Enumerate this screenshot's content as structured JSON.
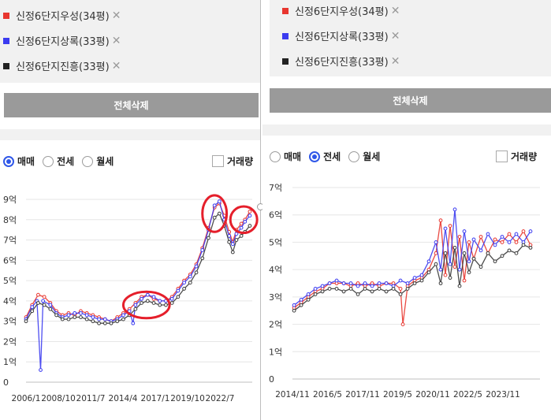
{
  "colors": {
    "series_red": "#e8362f",
    "series_blue": "#3b3bf0",
    "series_black": "#3a3a3a",
    "highlight_circle": "#e51f2b",
    "radio_active": "#2f57e8",
    "button_gray": "#9a9a9a"
  },
  "left": {
    "tags": [
      {
        "label": "신정6단지우성(34평)",
        "color": "#e8362f"
      },
      {
        "label": "신정6단지상록(33평)",
        "color": "#3b3bf0"
      },
      {
        "label": "신정6단지진흥(33평)",
        "color": "#222222"
      }
    ],
    "delete_all": "전체삭제",
    "tabs": {
      "sale": "매매",
      "jeonse": "전세",
      "monthly": "월세",
      "selected": "sale"
    },
    "volume": "거래량"
  },
  "right": {
    "tags": [
      {
        "label": "신정6단지우성(34평)",
        "color": "#e8362f"
      },
      {
        "label": "신정6단지상록(33평)",
        "color": "#3b3bf0"
      },
      {
        "label": "신정6단지진흥(33평)",
        "color": "#222222"
      }
    ],
    "delete_all": "전체삭제",
    "tabs": {
      "sale": "매매",
      "jeonse": "전세",
      "monthly": "월세",
      "selected": "jeonse"
    },
    "volume": "거래량"
  },
  "icons": {
    "remove": "close-x-icon",
    "check": "checkbox-icon"
  },
  "chart_data": [
    {
      "type": "line",
      "panel": "sale",
      "y_ticks": [
        "0",
        "1억",
        "2억",
        "3억",
        "4억",
        "5억",
        "6억",
        "7억",
        "8억",
        "9억"
      ],
      "x_ticks": [
        "2006/1",
        "2008/10",
        "2011/7",
        "2014/4",
        "2017/1",
        "2019/10",
        "2022/7"
      ],
      "ylim": [
        0,
        9
      ],
      "x_range": [
        2006.0,
        2024.6
      ],
      "grid": "horizontal",
      "series": [
        {
          "color": "#e8362f",
          "points": [
            [
              2006.0,
              3.2
            ],
            [
              2006.5,
              3.8
            ],
            [
              2007.0,
              4.3
            ],
            [
              2007.5,
              4.2
            ],
            [
              2008.0,
              3.9
            ],
            [
              2008.5,
              3.5
            ],
            [
              2009.0,
              3.3
            ],
            [
              2009.5,
              3.4
            ],
            [
              2010.0,
              3.3
            ],
            [
              2010.5,
              3.5
            ],
            [
              2011.0,
              3.4
            ],
            [
              2011.5,
              3.3
            ],
            [
              2012.0,
              3.2
            ],
            [
              2012.5,
              3.1
            ],
            [
              2013.0,
              3.0
            ],
            [
              2013.5,
              3.2
            ],
            [
              2014.0,
              3.4
            ],
            [
              2014.5,
              3.6
            ],
            [
              2015.0,
              3.9
            ],
            [
              2015.5,
              4.2
            ],
            [
              2016.0,
              4.3
            ],
            [
              2016.5,
              4.1
            ],
            [
              2017.0,
              4.0
            ],
            [
              2017.5,
              4.0
            ],
            [
              2018.0,
              4.2
            ],
            [
              2018.5,
              4.6
            ],
            [
              2019.0,
              5.0
            ],
            [
              2019.5,
              5.3
            ],
            [
              2020.0,
              5.8
            ],
            [
              2020.5,
              6.6
            ],
            [
              2021.0,
              7.6
            ],
            [
              2021.5,
              8.6
            ],
            [
              2021.9,
              8.8
            ],
            [
              2022.3,
              8.2
            ],
            [
              2022.7,
              7.4
            ],
            [
              2023.0,
              6.9
            ],
            [
              2023.3,
              7.5
            ],
            [
              2023.7,
              7.8
            ],
            [
              2024.0,
              8.0
            ],
            [
              2024.4,
              8.4
            ]
          ]
        },
        {
          "color": "#3b3bf0",
          "points": [
            [
              2006.0,
              3.1
            ],
            [
              2006.5,
              3.7
            ],
            [
              2006.9,
              4.0
            ],
            [
              2007.2,
              0.6
            ],
            [
              2007.4,
              4.0
            ],
            [
              2008.0,
              3.8
            ],
            [
              2008.5,
              3.4
            ],
            [
              2009.0,
              3.2
            ],
            [
              2009.5,
              3.3
            ],
            [
              2010.0,
              3.4
            ],
            [
              2010.5,
              3.4
            ],
            [
              2011.0,
              3.3
            ],
            [
              2011.5,
              3.2
            ],
            [
              2012.0,
              3.1
            ],
            [
              2012.5,
              3.1
            ],
            [
              2013.0,
              3.0
            ],
            [
              2013.5,
              3.1
            ],
            [
              2014.0,
              3.3
            ],
            [
              2014.5,
              3.5
            ],
            [
              2014.8,
              2.9
            ],
            [
              2015.0,
              3.8
            ],
            [
              2015.5,
              4.1
            ],
            [
              2016.0,
              4.3
            ],
            [
              2016.5,
              4.2
            ],
            [
              2017.0,
              4.0
            ],
            [
              2017.5,
              4.0
            ],
            [
              2018.0,
              4.1
            ],
            [
              2018.5,
              4.5
            ],
            [
              2019.0,
              4.9
            ],
            [
              2019.5,
              5.2
            ],
            [
              2020.0,
              5.7
            ],
            [
              2020.5,
              6.5
            ],
            [
              2021.0,
              7.5
            ],
            [
              2021.5,
              8.7
            ],
            [
              2021.9,
              8.9
            ],
            [
              2022.3,
              8.0
            ],
            [
              2022.7,
              7.2
            ],
            [
              2023.0,
              6.8
            ],
            [
              2023.3,
              7.3
            ],
            [
              2023.7,
              7.6
            ],
            [
              2024.0,
              7.9
            ],
            [
              2024.4,
              8.2
            ]
          ]
        },
        {
          "color": "#3a3a3a",
          "points": [
            [
              2006.0,
              3.0
            ],
            [
              2006.5,
              3.5
            ],
            [
              2007.0,
              3.9
            ],
            [
              2007.5,
              3.8
            ],
            [
              2008.0,
              3.6
            ],
            [
              2008.5,
              3.3
            ],
            [
              2009.0,
              3.1
            ],
            [
              2009.5,
              3.1
            ],
            [
              2010.0,
              3.2
            ],
            [
              2010.5,
              3.2
            ],
            [
              2011.0,
              3.1
            ],
            [
              2011.5,
              3.0
            ],
            [
              2012.0,
              2.9
            ],
            [
              2012.5,
              2.9
            ],
            [
              2013.0,
              2.9
            ],
            [
              2013.5,
              3.0
            ],
            [
              2014.0,
              3.1
            ],
            [
              2014.5,
              3.3
            ],
            [
              2015.0,
              3.6
            ],
            [
              2015.5,
              3.9
            ],
            [
              2016.0,
              4.0
            ],
            [
              2016.5,
              3.9
            ],
            [
              2017.0,
              3.8
            ],
            [
              2017.5,
              3.8
            ],
            [
              2018.0,
              3.9
            ],
            [
              2018.5,
              4.2
            ],
            [
              2019.0,
              4.6
            ],
            [
              2019.5,
              4.9
            ],
            [
              2020.0,
              5.4
            ],
            [
              2020.5,
              6.1
            ],
            [
              2021.0,
              7.1
            ],
            [
              2021.5,
              8.1
            ],
            [
              2021.9,
              8.3
            ],
            [
              2022.3,
              7.7
            ],
            [
              2022.7,
              6.9
            ],
            [
              2023.0,
              6.4
            ],
            [
              2023.3,
              7.0
            ],
            [
              2023.7,
              7.2
            ],
            [
              2024.0,
              7.4
            ],
            [
              2024.4,
              7.7
            ]
          ]
        }
      ],
      "highlights": [
        {
          "x_center": 2015.9,
          "y_center": 3.8,
          "x_radius": 1.9,
          "y_radius": 0.65
        },
        {
          "x_center": 2021.5,
          "y_center": 8.3,
          "x_radius": 1.0,
          "y_radius": 0.9
        },
        {
          "x_center": 2023.9,
          "y_center": 8.0,
          "x_radius": 1.1,
          "y_radius": 0.65
        }
      ]
    },
    {
      "type": "line",
      "panel": "jeonse",
      "y_ticks": [
        "0",
        "1억",
        "2억",
        "3억",
        "4억",
        "5억",
        "6억",
        "7억"
      ],
      "x_ticks": [
        "2014/11",
        "2016/5",
        "2017/11",
        "2019/5",
        "2020/11",
        "2022/5",
        "2023/11"
      ],
      "ylim": [
        0,
        7
      ],
      "x_range": [
        2014.83,
        2025.3
      ],
      "grid": "horizontal",
      "series": [
        {
          "color": "#e8362f",
          "points": [
            [
              2014.9,
              2.6
            ],
            [
              2015.2,
              2.8
            ],
            [
              2015.5,
              3.0
            ],
            [
              2015.8,
              3.2
            ],
            [
              2016.1,
              3.3
            ],
            [
              2016.4,
              3.5
            ],
            [
              2016.7,
              3.5
            ],
            [
              2017.0,
              3.5
            ],
            [
              2017.3,
              3.4
            ],
            [
              2017.6,
              3.5
            ],
            [
              2017.9,
              3.4
            ],
            [
              2018.2,
              3.5
            ],
            [
              2018.5,
              3.4
            ],
            [
              2018.8,
              3.5
            ],
            [
              2019.1,
              3.5
            ],
            [
              2019.4,
              3.3
            ],
            [
              2019.5,
              2.0
            ],
            [
              2019.7,
              3.4
            ],
            [
              2020.0,
              3.6
            ],
            [
              2020.3,
              3.7
            ],
            [
              2020.6,
              4.0
            ],
            [
              2020.9,
              4.6
            ],
            [
              2021.1,
              5.8
            ],
            [
              2021.3,
              3.8
            ],
            [
              2021.5,
              5.6
            ],
            [
              2021.7,
              4.1
            ],
            [
              2021.9,
              5.2
            ],
            [
              2022.1,
              3.6
            ],
            [
              2022.3,
              5.0
            ],
            [
              2022.5,
              4.4
            ],
            [
              2022.8,
              5.2
            ],
            [
              2023.1,
              4.6
            ],
            [
              2023.4,
              5.1
            ],
            [
              2023.7,
              5.0
            ],
            [
              2024.0,
              5.3
            ],
            [
              2024.3,
              5.0
            ],
            [
              2024.6,
              5.4
            ],
            [
              2024.9,
              4.9
            ]
          ]
        },
        {
          "color": "#3b3bf0",
          "points": [
            [
              2014.9,
              2.7
            ],
            [
              2015.2,
              2.9
            ],
            [
              2015.5,
              3.1
            ],
            [
              2015.8,
              3.3
            ],
            [
              2016.1,
              3.4
            ],
            [
              2016.4,
              3.5
            ],
            [
              2016.7,
              3.6
            ],
            [
              2017.0,
              3.5
            ],
            [
              2017.3,
              3.5
            ],
            [
              2017.6,
              3.4
            ],
            [
              2017.9,
              3.5
            ],
            [
              2018.2,
              3.4
            ],
            [
              2018.5,
              3.5
            ],
            [
              2018.8,
              3.5
            ],
            [
              2019.1,
              3.4
            ],
            [
              2019.4,
              3.6
            ],
            [
              2019.7,
              3.5
            ],
            [
              2020.0,
              3.7
            ],
            [
              2020.3,
              3.8
            ],
            [
              2020.6,
              4.3
            ],
            [
              2020.9,
              5.0
            ],
            [
              2021.1,
              4.0
            ],
            [
              2021.3,
              5.5
            ],
            [
              2021.5,
              4.2
            ],
            [
              2021.7,
              6.2
            ],
            [
              2021.9,
              4.0
            ],
            [
              2022.1,
              5.4
            ],
            [
              2022.3,
              4.3
            ],
            [
              2022.5,
              5.1
            ],
            [
              2022.8,
              4.7
            ],
            [
              2023.1,
              5.3
            ],
            [
              2023.4,
              4.9
            ],
            [
              2023.7,
              5.2
            ],
            [
              2024.0,
              5.0
            ],
            [
              2024.3,
              5.3
            ],
            [
              2024.6,
              5.0
            ],
            [
              2024.9,
              5.4
            ]
          ]
        },
        {
          "color": "#3a3a3a",
          "points": [
            [
              2014.9,
              2.5
            ],
            [
              2015.2,
              2.7
            ],
            [
              2015.5,
              2.9
            ],
            [
              2015.8,
              3.1
            ],
            [
              2016.1,
              3.2
            ],
            [
              2016.4,
              3.3
            ],
            [
              2016.7,
              3.3
            ],
            [
              2017.0,
              3.2
            ],
            [
              2017.3,
              3.3
            ],
            [
              2017.6,
              3.1
            ],
            [
              2017.9,
              3.3
            ],
            [
              2018.2,
              3.2
            ],
            [
              2018.5,
              3.3
            ],
            [
              2018.8,
              3.2
            ],
            [
              2019.1,
              3.3
            ],
            [
              2019.4,
              3.1
            ],
            [
              2019.7,
              3.3
            ],
            [
              2020.0,
              3.5
            ],
            [
              2020.3,
              3.6
            ],
            [
              2020.6,
              3.9
            ],
            [
              2020.9,
              4.2
            ],
            [
              2021.1,
              3.5
            ],
            [
              2021.3,
              4.6
            ],
            [
              2021.5,
              3.7
            ],
            [
              2021.7,
              4.8
            ],
            [
              2021.9,
              3.4
            ],
            [
              2022.1,
              4.6
            ],
            [
              2022.3,
              3.9
            ],
            [
              2022.5,
              4.4
            ],
            [
              2022.8,
              4.1
            ],
            [
              2023.1,
              4.6
            ],
            [
              2023.4,
              4.3
            ],
            [
              2023.7,
              4.5
            ],
            [
              2024.0,
              4.7
            ],
            [
              2024.3,
              4.6
            ],
            [
              2024.6,
              4.9
            ],
            [
              2024.9,
              4.8
            ]
          ]
        }
      ]
    }
  ]
}
